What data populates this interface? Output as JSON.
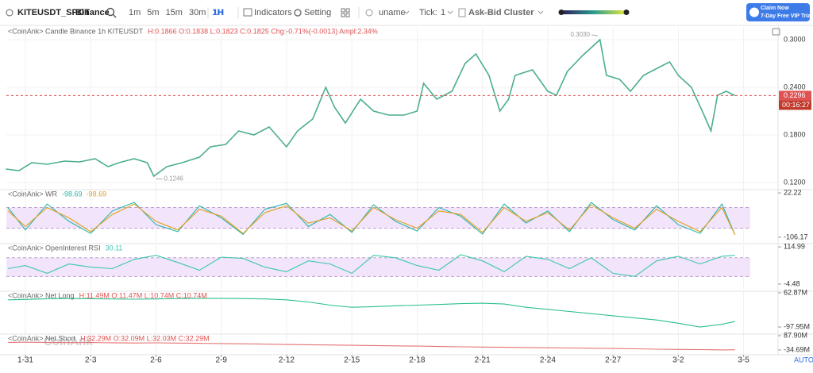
{
  "toolbar": {
    "symbol": "KITEUSDT_SPOT",
    "exchange": "Binance",
    "intervals": [
      "1m",
      "5m",
      "15m",
      "30m",
      "1H"
    ],
    "active_interval": "1H",
    "indicators": "Indicators",
    "setting": "Setting",
    "user": "uname",
    "tick_label": "Tick:",
    "tick_value": 1,
    "cluster": "Ask-Bid Cluster",
    "promo": {
      "title": "Claim Now",
      "subtitle": "7-Day Free VIP Trial"
    }
  },
  "x_axis": {
    "xlim": [
      -0.875,
      34.4
    ],
    "auto": "AUTO",
    "xticks": [
      {
        "value": 0,
        "label": "1-31"
      },
      {
        "value": 3,
        "label": "2-3"
      },
      {
        "value": 6,
        "label": "2-6"
      },
      {
        "value": 9,
        "label": "2-9"
      },
      {
        "value": 12,
        "label": "2-12"
      },
      {
        "value": 15,
        "label": "2-15"
      },
      {
        "value": 18,
        "label": "2-18"
      },
      {
        "value": 21,
        "label": "2-21"
      },
      {
        "value": 24,
        "label": "2-24"
      },
      {
        "value": 27,
        "label": "2-27"
      },
      {
        "value": 30,
        "label": "3-2"
      },
      {
        "value": 33,
        "label": "3-5"
      }
    ]
  },
  "chart_data": [
    {
      "type": "line",
      "title": "<CoinAnk> Candle  Binance 1h KITEUSDT",
      "stats": "H:0.1866  O:0.1838  L:0.1823  C:0.1825  Chg:-0.71%(-0.0013)  Ampl:2.34%",
      "x": [
        -0.9,
        -0.3,
        0.3,
        1.0,
        1.8,
        2.5,
        3.2,
        3.8,
        4.3,
        5.0,
        5.6,
        5.9,
        6.5,
        7.2,
        8.0,
        8.5,
        9.2,
        9.8,
        10.5,
        11.2,
        12.0,
        12.5,
        13.2,
        13.8,
        14.2,
        14.7,
        15.4,
        16.0,
        16.7,
        17.4,
        18.0,
        18.3,
        18.9,
        19.6,
        20.2,
        20.7,
        21.3,
        21.8,
        22.2,
        22.5,
        23.3,
        24.0,
        24.4,
        24.9,
        25.6,
        26.4,
        26.7,
        27.3,
        27.8,
        28.4,
        29.1,
        29.6,
        30.0,
        30.6,
        31.1,
        31.5,
        31.8,
        32.2,
        32.6
      ],
      "series": [
        {
          "color": "#4caf8a",
          "values": [
            0.137,
            0.135,
            0.145,
            0.143,
            0.147,
            0.146,
            0.15,
            0.14,
            0.145,
            0.15,
            0.145,
            0.128,
            0.14,
            0.145,
            0.152,
            0.165,
            0.168,
            0.185,
            0.18,
            0.19,
            0.165,
            0.185,
            0.2,
            0.24,
            0.215,
            0.195,
            0.225,
            0.21,
            0.205,
            0.205,
            0.21,
            0.245,
            0.225,
            0.235,
            0.27,
            0.282,
            0.255,
            0.21,
            0.225,
            0.255,
            0.262,
            0.235,
            0.23,
            0.26,
            0.28,
            0.3,
            0.255,
            0.25,
            0.235,
            0.255,
            0.265,
            0.272,
            0.255,
            0.24,
            0.21,
            0.185,
            0.23,
            0.235,
            0.2296
          ]
        }
      ],
      "ylim": [
        0.11,
        0.317
      ],
      "yticks": [
        {
          "value": 0.12,
          "label": "0.1200"
        },
        {
          "value": 0.18,
          "label": "0.1800"
        },
        {
          "value": 0.24,
          "label": "0.2400"
        },
        {
          "value": 0.3,
          "label": "0.3000"
        }
      ],
      "last": {
        "value": 0.2296,
        "label": "0.2296"
      },
      "countdown": "00:16:27",
      "annotations": [
        {
          "x": 26.3,
          "value": 0.303,
          "label": "0.3030"
        },
        {
          "x": 6.0,
          "value": 0.1246,
          "label": "0.1246"
        }
      ]
    },
    {
      "type": "line",
      "title": "<CoinAnk> WR",
      "readouts": [
        "-98.69",
        "-98.69"
      ],
      "x": [
        -0.8,
        0,
        1,
        2,
        3,
        4,
        5,
        6,
        7,
        8,
        9,
        10,
        11,
        12,
        13,
        14,
        15,
        16,
        17,
        18,
        19,
        20,
        21,
        22,
        23,
        24,
        25,
        26,
        27,
        28,
        29,
        30,
        31,
        32,
        32.6
      ],
      "series": [
        {
          "color": "#26b5a8",
          "values": [
            -20,
            -85,
            -10,
            -60,
            -95,
            -30,
            -5,
            -70,
            -90,
            -15,
            -50,
            -98,
            -25,
            -8,
            -75,
            -40,
            -92,
            -12,
            -60,
            -88,
            -20,
            -45,
            -97,
            -10,
            -65,
            -30,
            -90,
            -5,
            -55,
            -85,
            -15,
            -70,
            -95,
            -10,
            -98.69
          ]
        },
        {
          "color": "#e0a020",
          "values": [
            -30,
            -75,
            -20,
            -50,
            -90,
            -40,
            -10,
            -60,
            -85,
            -25,
            -45,
            -95,
            -35,
            -15,
            -65,
            -50,
            -88,
            -20,
            -55,
            -80,
            -30,
            -40,
            -92,
            -20,
            -60,
            -35,
            -85,
            -12,
            -50,
            -80,
            -25,
            -60,
            -90,
            -20,
            -98.69
          ]
        }
      ],
      "ylim": [
        -120,
        34
      ],
      "yticks": [
        -106.17,
        22.22
      ],
      "band": [
        -80,
        -20
      ]
    },
    {
      "type": "line",
      "title": "<CoinAnk> OpenInterest RSI",
      "readouts": [
        "30.11"
      ],
      "x": [
        -0.8,
        0,
        1,
        2,
        3,
        4,
        5,
        6,
        7,
        8,
        9,
        10,
        11,
        12,
        13,
        14,
        15,
        16,
        17,
        18,
        19,
        20,
        21,
        22,
        23,
        24,
        25,
        26,
        27,
        28,
        29,
        30,
        31,
        32,
        32.6
      ],
      "series": [
        {
          "color": "#3cc7b0",
          "values": [
            45,
            55,
            30,
            60,
            50,
            45,
            75,
            88,
            65,
            40,
            82,
            78,
            50,
            35,
            70,
            60,
            30,
            88,
            80,
            55,
            40,
            90,
            70,
            35,
            85,
            75,
            45,
            80,
            30,
            20,
            70,
            85,
            60,
            85,
            88
          ]
        }
      ],
      "ylim": [
        -20,
        128
      ],
      "yticks": [
        -4.48,
        114.99
      ],
      "band": [
        20,
        80
      ]
    },
    {
      "type": "line",
      "title": "<CoinAnk> Net Long",
      "stats": "H:11.49M  O:11.47M  L:10.74M  C:10.74M",
      "x": [
        -0.8,
        0,
        1,
        2,
        3,
        4,
        5,
        6,
        7,
        8,
        9,
        10,
        11,
        12,
        13,
        14,
        15,
        16,
        17,
        18,
        19,
        20,
        21,
        22,
        23,
        24,
        25,
        26,
        27,
        28,
        29,
        30,
        31,
        32,
        32.6
      ],
      "series": [
        {
          "color": "#2bbf8f",
          "values": [
            30,
            32,
            35,
            36,
            35,
            34,
            33,
            34,
            36,
            37,
            37,
            36,
            34,
            30,
            20,
            5,
            -5,
            -2,
            2,
            5,
            8,
            12,
            14,
            10,
            -5,
            -15,
            -25,
            -35,
            -45,
            -55,
            -65,
            -80,
            -97.95,
            -85,
            -72
          ]
        }
      ],
      "ylim": [
        -135,
        74
      ],
      "yticks": [
        {
          "value": -97.95,
          "label": "-97.95M"
        },
        {
          "value": 62.87,
          "label": "62.87M"
        }
      ]
    },
    {
      "type": "line",
      "title": "<CoinAnk> Net Short",
      "stats": "H:32.29M  O:32.09M  L:32.03M  C:32.29M",
      "watermark": "CoinAnk",
      "x": [
        -0.8,
        0,
        1,
        2,
        3,
        4,
        5,
        6,
        7,
        8,
        9,
        10,
        11,
        12,
        13,
        14,
        15,
        16,
        17,
        18,
        19,
        20,
        21,
        22,
        23,
        24,
        25,
        26,
        27,
        28,
        29,
        30,
        31,
        32,
        32.6
      ],
      "series": [
        {
          "color": "#e57373",
          "values": [
            30,
            32,
            30,
            28,
            29,
            27,
            25,
            26,
            24,
            22,
            20,
            18,
            15,
            12,
            10,
            8,
            5,
            3,
            0,
            -2,
            -5,
            -8,
            -10,
            -12,
            -14,
            -16,
            -18,
            -20,
            -22,
            -25,
            -28,
            -30,
            -32,
            -34.69,
            -33
          ]
        }
      ],
      "ylim": [
        -76,
        108
      ],
      "yticks": [
        {
          "value": -34.69,
          "label": "-34.69M"
        },
        {
          "value": 87.9,
          "label": "87.90M"
        }
      ]
    }
  ]
}
